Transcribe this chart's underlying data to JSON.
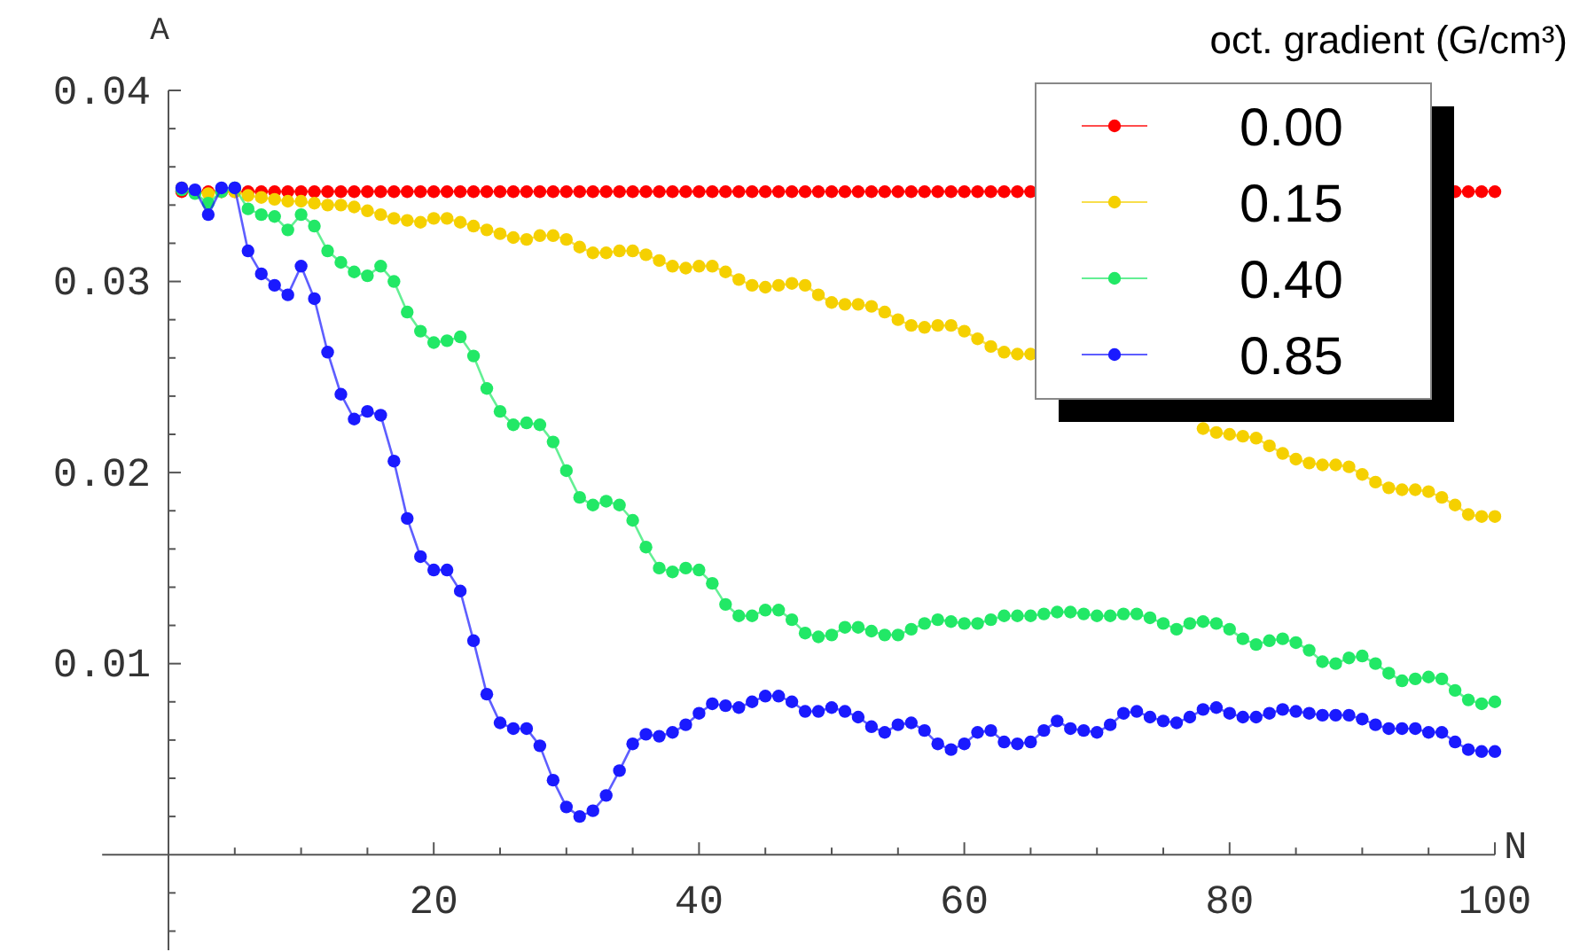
{
  "chart_data": {
    "type": "line",
    "xlabel": "N",
    "ylabel": "A",
    "legend_title": "oct. gradient (G/cm³)",
    "legend": "top right",
    "marker": "circle",
    "line_style": "solid",
    "xlim": [
      -5,
      100
    ],
    "ylim": [
      -0.005,
      0.04
    ],
    "xticks": [
      {
        "value": 5,
        "label": null
      },
      {
        "value": 10,
        "label": null
      },
      {
        "value": 15,
        "label": null
      },
      20,
      {
        "value": 25,
        "label": null
      },
      {
        "value": 30,
        "label": null
      },
      {
        "value": 35,
        "label": null
      },
      40,
      {
        "value": 45,
        "label": null
      },
      {
        "value": 50,
        "label": null
      },
      {
        "value": 55,
        "label": null
      },
      60,
      {
        "value": 65,
        "label": null
      },
      {
        "value": 70,
        "label": null
      },
      {
        "value": 75,
        "label": null
      },
      80,
      {
        "value": 85,
        "label": null
      },
      {
        "value": 90,
        "label": null
      },
      {
        "value": 95,
        "label": null
      },
      100
    ],
    "yticks": [
      {
        "value": -0.004,
        "label": null
      },
      {
        "value": -0.002,
        "label": null
      },
      {
        "value": 0.002,
        "label": null
      },
      {
        "value": 0.004,
        "label": null
      },
      {
        "value": 0.006,
        "label": null
      },
      {
        "value": 0.008,
        "label": null
      },
      0.01,
      {
        "value": 0.012,
        "label": null
      },
      {
        "value": 0.014,
        "label": null
      },
      {
        "value": 0.016,
        "label": null
      },
      {
        "value": 0.018,
        "label": null
      },
      0.02,
      {
        "value": 0.022,
        "label": null
      },
      {
        "value": 0.024,
        "label": null
      },
      {
        "value": 0.026,
        "label": null
      },
      {
        "value": 0.028,
        "label": null
      },
      0.03,
      {
        "value": 0.032,
        "label": null
      },
      {
        "value": 0.034,
        "label": null
      },
      {
        "value": 0.036,
        "label": null
      },
      {
        "value": 0.038,
        "label": null
      },
      0.04
    ],
    "x": [
      1,
      2,
      3,
      4,
      5,
      6,
      7,
      8,
      9,
      10,
      11,
      12,
      13,
      14,
      15,
      16,
      17,
      18,
      19,
      20,
      21,
      22,
      23,
      24,
      25,
      26,
      27,
      28,
      29,
      30,
      31,
      32,
      33,
      34,
      35,
      36,
      37,
      38,
      39,
      40,
      41,
      42,
      43,
      44,
      45,
      46,
      47,
      48,
      49,
      50,
      51,
      52,
      53,
      54,
      55,
      56,
      57,
      58,
      59,
      60,
      61,
      62,
      63,
      64,
      65,
      66,
      67,
      68,
      69,
      70,
      71,
      72,
      73,
      74,
      75,
      76,
      77,
      78,
      79,
      80,
      81,
      82,
      83,
      84,
      85,
      86,
      87,
      88,
      89,
      90,
      91,
      92,
      93,
      94,
      95,
      96,
      97,
      98,
      99,
      100
    ],
    "series": [
      {
        "name": "0.00",
        "color": "#ff0000",
        "values": [
          0.0347,
          0.0347,
          0.0347,
          0.0347,
          0.0347,
          0.0347,
          0.0347,
          0.0347,
          0.0347,
          0.0347,
          0.0347,
          0.0347,
          0.0347,
          0.0347,
          0.0347,
          0.0347,
          0.0347,
          0.0347,
          0.0347,
          0.0347,
          0.0347,
          0.0347,
          0.0347,
          0.0347,
          0.0347,
          0.0347,
          0.0347,
          0.0347,
          0.0347,
          0.0347,
          0.0347,
          0.0347,
          0.0347,
          0.0347,
          0.0347,
          0.0347,
          0.0347,
          0.0347,
          0.0347,
          0.0347,
          0.0347,
          0.0347,
          0.0347,
          0.0347,
          0.0347,
          0.0347,
          0.0347,
          0.0347,
          0.0347,
          0.0347,
          0.0347,
          0.0347,
          0.0347,
          0.0347,
          0.0347,
          0.0347,
          0.0347,
          0.0347,
          0.0347,
          0.0347,
          0.0347,
          0.0347,
          0.0347,
          0.0347,
          0.0347,
          null,
          null,
          null,
          null,
          null,
          null,
          null,
          null,
          null,
          null,
          null,
          null,
          null,
          null,
          null,
          null,
          null,
          null,
          null,
          null,
          null,
          null,
          null,
          null,
          null,
          null,
          null,
          null,
          null,
          null,
          null,
          0.0347,
          0.0347,
          0.0347,
          0.0347
        ]
      },
      {
        "name": "0.15",
        "color": "#f5d000",
        "values": [
          0.0349,
          0.0347,
          0.0346,
          0.0347,
          0.0347,
          0.0345,
          0.0344,
          0.0343,
          0.0342,
          0.0342,
          0.0341,
          0.034,
          0.034,
          0.0339,
          0.0337,
          0.0335,
          0.0333,
          0.0332,
          0.0331,
          0.0333,
          0.0333,
          0.0331,
          0.0329,
          0.0327,
          0.0325,
          0.0323,
          0.0322,
          0.0324,
          0.0324,
          0.0322,
          0.0318,
          0.0315,
          0.0315,
          0.0316,
          0.0316,
          0.0314,
          0.0311,
          0.0308,
          0.0307,
          0.0308,
          0.0308,
          0.0305,
          0.0301,
          0.0298,
          0.0297,
          0.0298,
          0.0299,
          0.0298,
          0.0293,
          0.0289,
          0.0288,
          0.0288,
          0.0287,
          0.0284,
          0.028,
          0.0277,
          0.0276,
          0.0277,
          0.0277,
          0.0274,
          0.027,
          0.0266,
          0.0263,
          0.0262,
          0.0262,
          null,
          null,
          null,
          null,
          null,
          null,
          null,
          null,
          null,
          null,
          null,
          null,
          0.0223,
          0.0221,
          0.022,
          0.0219,
          0.0218,
          0.0214,
          0.021,
          0.0207,
          0.0205,
          0.0204,
          0.0204,
          0.0203,
          0.0199,
          0.0195,
          0.0192,
          0.0191,
          0.0191,
          0.019,
          0.0187,
          0.0183,
          0.0178,
          0.0177,
          0.0177
        ]
      },
      {
        "name": "0.40",
        "color": "#22e866",
        "values": [
          0.0348,
          0.0346,
          0.0341,
          0.0347,
          0.0349,
          0.0338,
          0.0335,
          0.0334,
          0.0327,
          0.0335,
          0.0329,
          0.0316,
          0.031,
          0.0305,
          0.0303,
          0.0308,
          0.03,
          0.0284,
          0.0274,
          0.0268,
          0.0269,
          0.0271,
          0.0261,
          0.0244,
          0.0232,
          0.0225,
          0.0226,
          0.0225,
          0.0216,
          0.0201,
          0.0187,
          0.0183,
          0.0185,
          0.0183,
          0.0175,
          0.0161,
          0.015,
          0.0148,
          0.015,
          0.0149,
          0.0142,
          0.0131,
          0.0125,
          0.0125,
          0.0128,
          0.0128,
          0.0123,
          0.0116,
          0.0114,
          0.0115,
          0.0119,
          0.0119,
          0.0117,
          0.0115,
          0.0115,
          0.0118,
          0.0121,
          0.0123,
          0.0122,
          0.0121,
          0.0121,
          0.0123,
          0.0125,
          0.0125,
          0.0125,
          0.0126,
          0.0127,
          0.0127,
          0.0126,
          0.0125,
          0.0125,
          0.0126,
          0.0126,
          0.0124,
          0.0121,
          0.0118,
          0.0121,
          0.0122,
          0.0121,
          0.0118,
          0.0113,
          0.011,
          0.0112,
          0.0113,
          0.0111,
          0.0107,
          0.0101,
          0.01,
          0.0103,
          0.0104,
          0.01,
          0.0095,
          0.0091,
          0.0092,
          0.0093,
          0.0092,
          0.0086,
          0.0081,
          0.0079,
          0.008
        ]
      },
      {
        "name": "0.85",
        "color": "#1a1aff",
        "values": [
          0.0349,
          0.0348,
          0.0335,
          0.0349,
          0.0349,
          0.0316,
          0.0304,
          0.0298,
          0.0293,
          0.0308,
          0.0291,
          0.0263,
          0.0241,
          0.0228,
          0.0232,
          0.023,
          0.0206,
          0.0176,
          0.0156,
          0.0149,
          0.0149,
          0.0138,
          0.0112,
          0.0084,
          0.0069,
          0.0066,
          0.0066,
          0.0057,
          0.0039,
          0.0025,
          0.002,
          0.0023,
          0.0031,
          0.0044,
          0.0058,
          0.0063,
          0.0062,
          0.0064,
          0.0068,
          0.0074,
          0.0079,
          0.0078,
          0.0077,
          0.008,
          0.0083,
          0.0083,
          0.008,
          0.0075,
          0.0075,
          0.0077,
          0.0075,
          0.0072,
          0.0067,
          0.0064,
          0.0068,
          0.0069,
          0.0065,
          0.0058,
          0.0055,
          0.0058,
          0.0064,
          0.0065,
          0.0059,
          0.0058,
          0.0059,
          0.0065,
          0.007,
          0.0066,
          0.0065,
          0.0064,
          0.0068,
          0.0074,
          0.0075,
          0.0072,
          0.007,
          0.0069,
          0.0072,
          0.0076,
          0.0077,
          0.0074,
          0.0072,
          0.0072,
          0.0074,
          0.0076,
          0.0075,
          0.0074,
          0.0073,
          0.0073,
          0.0073,
          0.0071,
          0.0068,
          0.0066,
          0.0066,
          0.0066,
          0.0064,
          0.0064,
          0.0059,
          0.0055,
          0.0054,
          0.0054
        ]
      }
    ]
  }
}
